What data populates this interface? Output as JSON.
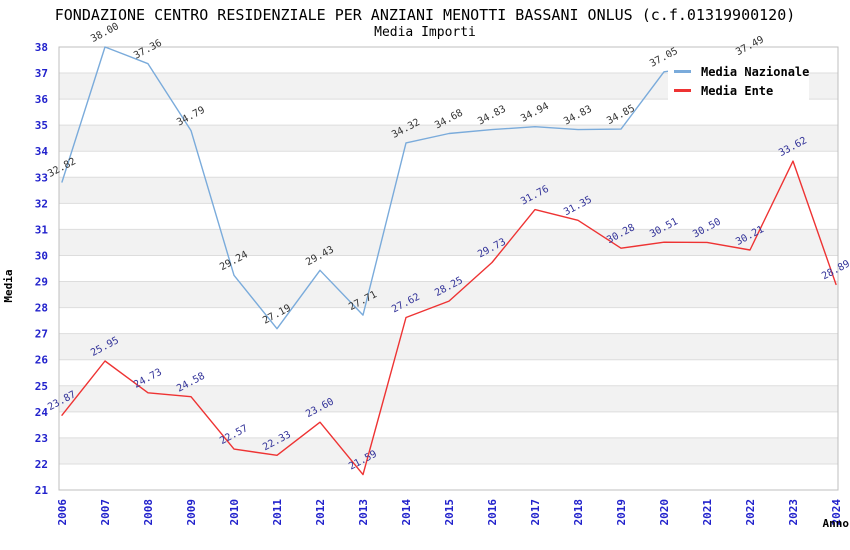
{
  "header": {
    "title": "FONDAZIONE CENTRO RESIDENZIALE PER ANZIANI MENOTTI BASSANI ONLUS (c.f.01319900120)",
    "subtitle": "Media Importi"
  },
  "chart_data": {
    "type": "line",
    "x": [
      2006,
      2007,
      2008,
      2009,
      2010,
      2011,
      2012,
      2013,
      2014,
      2015,
      2016,
      2017,
      2018,
      2019,
      2020,
      2021,
      2022,
      2023,
      2024
    ],
    "xlabel": "Anno",
    "ylabel": "Media",
    "ylim": [
      21,
      38
    ],
    "ytick_step": 1,
    "grid": true,
    "legend_position": "top-right",
    "series": [
      {
        "name": "Media Nazionale",
        "color": "#7aabdb",
        "label_color": "#333333",
        "values": [
          32.82,
          38.0,
          37.36,
          34.79,
          29.24,
          27.19,
          29.43,
          27.71,
          34.32,
          34.68,
          34.83,
          34.94,
          34.83,
          34.85,
          37.05,
          null,
          37.49,
          null,
          null
        ]
      },
      {
        "name": "Media Ente",
        "color": "#ee3333",
        "label_color": "#333399",
        "values": [
          23.87,
          25.95,
          24.73,
          24.58,
          22.57,
          22.33,
          23.6,
          21.59,
          27.62,
          28.25,
          29.73,
          31.76,
          31.35,
          30.28,
          30.51,
          30.5,
          30.21,
          33.62,
          28.89
        ]
      }
    ]
  },
  "style": {
    "band_color": "#f2f2f2",
    "grid_color": "#dddddd",
    "border_color": "#bfbfbf",
    "tick_color": "#2222cc",
    "axis_label_color": "#000000",
    "background": "#ffffff"
  }
}
